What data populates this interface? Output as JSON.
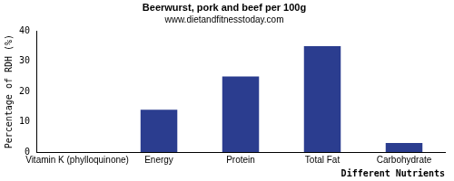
{
  "chart_data": {
    "type": "bar",
    "title": "Beerwurst, pork and beef per 100g",
    "subtitle": "www.dietandfitnesstoday.com",
    "x_label": "Different Nutrients",
    "y_label": "Percentage of RDH (%)",
    "categories": [
      "Vitamin K (phylloquinone)",
      "Energy",
      "Protein",
      "Total Fat",
      "Carbohydrate"
    ],
    "values": [
      0,
      14,
      25,
      35,
      3
    ],
    "color": "#2b3d8f",
    "ylim": [
      0,
      40
    ],
    "yticks": [
      0,
      10,
      20,
      30,
      40
    ],
    "grid": false
  }
}
